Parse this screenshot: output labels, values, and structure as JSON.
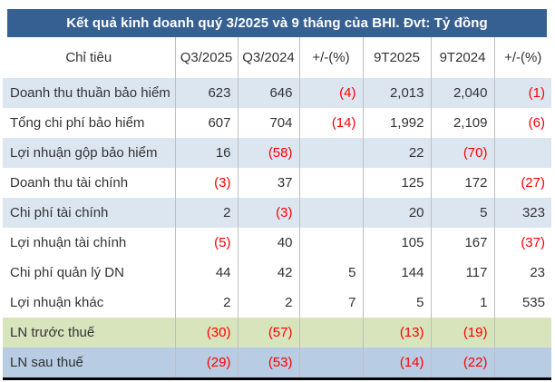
{
  "title": "Kết quả kinh doanh quý 3/2025 và 9 tháng của BHI. Đvt: Tỷ đồng",
  "colors": {
    "title_bg": "#376092",
    "title_text": "#ffffff",
    "row_blue": "#dce6f1",
    "row_green": "#d8e4bc",
    "row_steel": "#b8cce4",
    "negative": "#ff0000",
    "text": "#333333",
    "grid": "#bfbfbf"
  },
  "chart_data": {
    "type": "table",
    "title": "Kết quả kinh doanh quý 3/2025 và 9 tháng của BHI. Đvt: Tỷ đồng",
    "columns": [
      "Chỉ tiêu",
      "Q3/2025",
      "Q3/2024",
      "+/-(%)",
      "9T2025",
      "9T2024",
      "+/-(%)"
    ],
    "rows": [
      {
        "label": "Doanh thu thuần bảo hiểm",
        "values": [
          "623",
          "646",
          "(4)",
          "2,013",
          "2,040",
          "(1)"
        ],
        "style": "blue"
      },
      {
        "label": "Tổng chi phí bảo hiểm",
        "values": [
          "607",
          "704",
          "(14)",
          "1,992",
          "2,109",
          "(6)"
        ],
        "style": "white"
      },
      {
        "label": "Lợi nhuận gộp  bảo hiểm",
        "values": [
          "16",
          "(58)",
          "",
          "22",
          "(70)",
          ""
        ],
        "style": "blue"
      },
      {
        "label": "Doanh thu tài chính",
        "values": [
          "(3)",
          "37",
          "",
          "125",
          "172",
          "(27)"
        ],
        "style": "white"
      },
      {
        "label": "Chi phí tài chính",
        "values": [
          "2",
          "(3)",
          "",
          "20",
          "5",
          "323"
        ],
        "style": "blue"
      },
      {
        "label": "Lợi nhuận tài chính",
        "values": [
          "(5)",
          "40",
          "",
          "105",
          "167",
          "(37)"
        ],
        "style": "white"
      },
      {
        "label": "Chi phí quản lý DN",
        "values": [
          "44",
          "42",
          "5",
          "144",
          "117",
          "23"
        ],
        "style": "white"
      },
      {
        "label": "Lợi nhuận khác",
        "values": [
          "2",
          "2",
          "7",
          "5",
          "1",
          "535"
        ],
        "style": "white"
      },
      {
        "label": "LN trước thuế",
        "values": [
          "(30)",
          "(57)",
          "",
          "(13)",
          "(19)",
          ""
        ],
        "style": "green"
      },
      {
        "label": "LN sau thuế",
        "values": [
          "(29)",
          "(53)",
          "",
          "(14)",
          "(22)",
          ""
        ],
        "style": "steel"
      }
    ]
  }
}
